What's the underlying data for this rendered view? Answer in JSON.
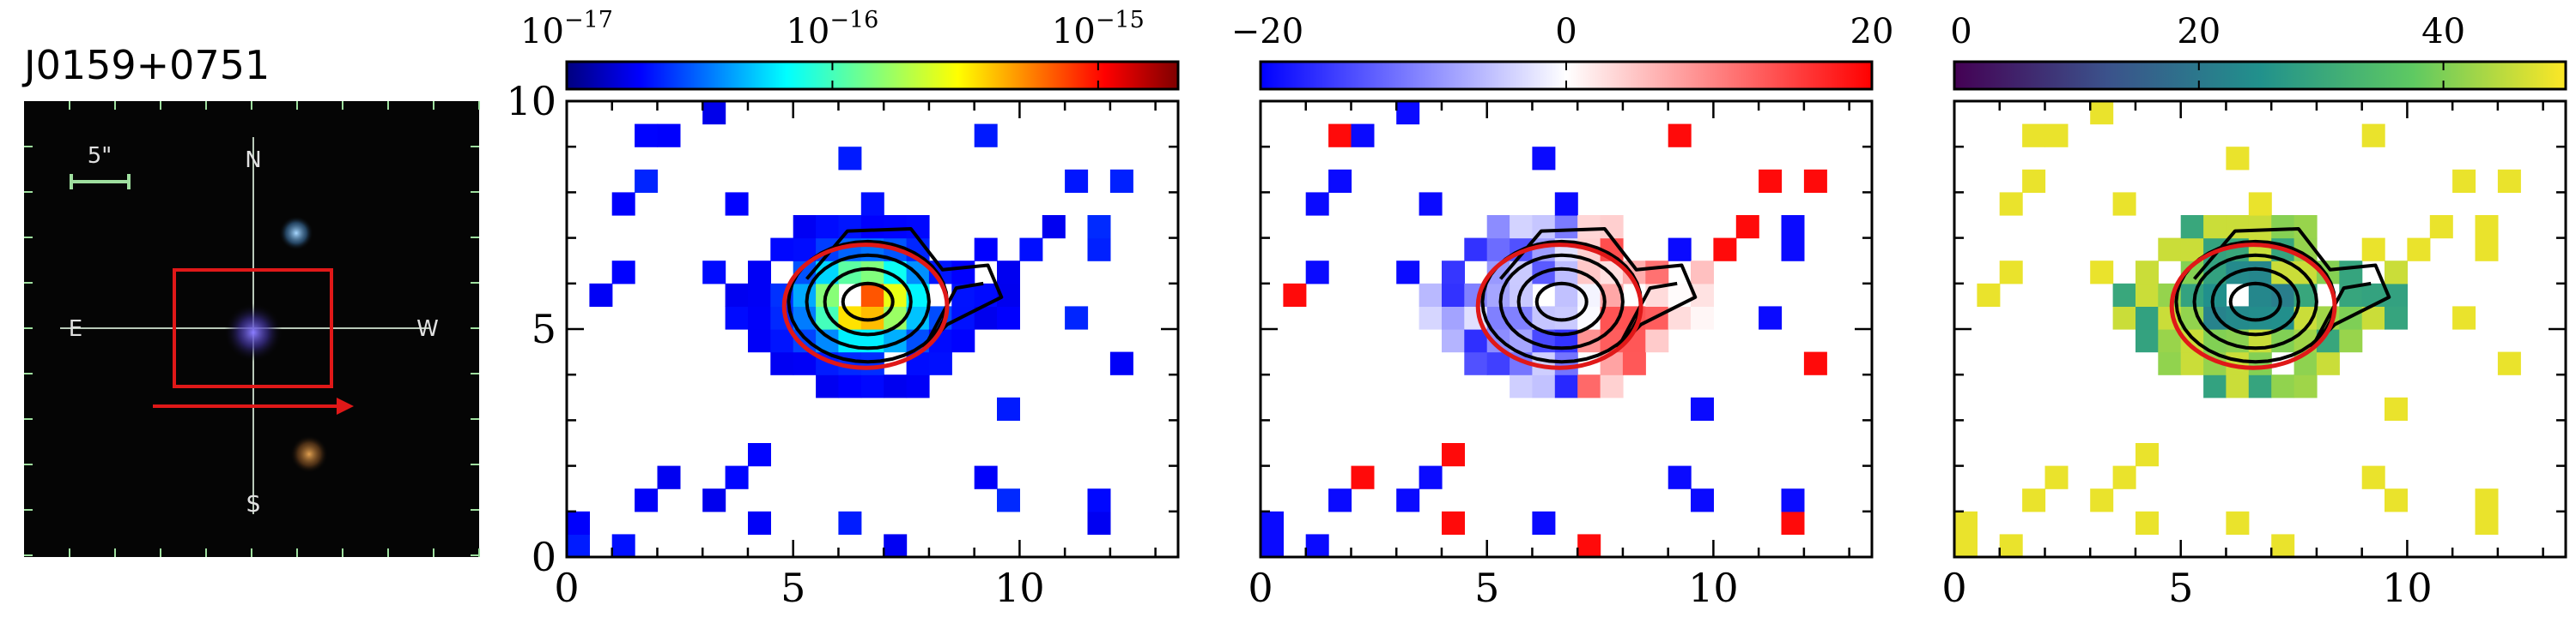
{
  "object_name": "J0159+0751",
  "thumbnail": {
    "scale_label": "5\"",
    "compass": {
      "north": "N",
      "south": "S",
      "east": "E",
      "west": "W"
    },
    "colors": {
      "background": "#050505",
      "crosshair": "#b9c9b9",
      "scale_bar": "#9fdf9f",
      "box": "#e01818",
      "arrow": "#e01818"
    }
  },
  "chart_data": [
    {
      "type": "heatmap",
      "panel": "flux",
      "colormap": "jet",
      "colorbar": {
        "scale": "log",
        "range": [
          1e-17,
          2e-15
        ],
        "ticks": [
          {
            "value": 1e-17,
            "base": "10",
            "exp": "−17"
          },
          {
            "value": 1e-16,
            "base": "10",
            "exp": "−16"
          },
          {
            "value": 1e-15,
            "base": "10",
            "exp": "−15"
          }
        ]
      },
      "xlim": [
        0,
        13.5
      ],
      "ylim": [
        0,
        10
      ],
      "xticks": [
        0,
        5,
        10
      ],
      "yticks": [
        0,
        5,
        10
      ],
      "aperture_ellipse": {
        "center": [
          6.6,
          5.5
        ],
        "width": 3.6,
        "height": 2.7,
        "color": "#e01818"
      }
    },
    {
      "type": "heatmap",
      "panel": "velocity",
      "colormap": "bwr",
      "colorbar": {
        "scale": "linear",
        "range": [
          -20,
          20
        ],
        "ticks": [
          {
            "value": -20,
            "label": "−20"
          },
          {
            "value": 0,
            "label": "0"
          },
          {
            "value": 20,
            "label": "20"
          }
        ]
      },
      "xlim": [
        0,
        13.5
      ],
      "ylim": [
        0,
        10
      ],
      "xticks": [
        0,
        5,
        10
      ],
      "yticks": [
        0,
        5,
        10
      ],
      "aperture_ellipse": {
        "center": [
          6.6,
          5.5
        ],
        "width": 3.6,
        "height": 2.7,
        "color": "#e01818"
      }
    },
    {
      "type": "heatmap",
      "panel": "dispersion",
      "colormap": "viridis",
      "colorbar": {
        "scale": "linear",
        "range": [
          0,
          50
        ],
        "ticks": [
          {
            "value": 0,
            "label": "0"
          },
          {
            "value": 20,
            "label": "20"
          },
          {
            "value": 40,
            "label": "40"
          }
        ]
      },
      "xlim": [
        0,
        13.5
      ],
      "ylim": [
        0,
        10
      ],
      "xticks": [
        0,
        5,
        10
      ],
      "yticks": [
        0,
        5,
        10
      ],
      "aperture_ellipse": {
        "center": [
          6.6,
          5.5
        ],
        "width": 3.6,
        "height": 2.7,
        "color": "#e01818"
      }
    }
  ]
}
